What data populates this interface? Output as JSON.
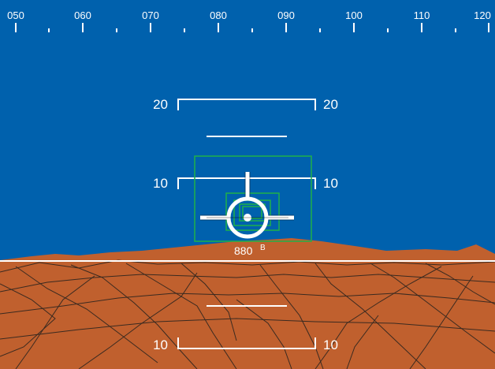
{
  "heading_tape": {
    "labels": [
      "050",
      "060",
      "070",
      "080",
      "090",
      "100",
      "110",
      "120"
    ]
  },
  "pitch_ladder": {
    "up_20": {
      "left": "20",
      "right": "20"
    },
    "up_10": {
      "left": "10",
      "right": "10"
    },
    "down_10": {
      "left": "10",
      "right": "10"
    }
  },
  "target_marker": {
    "altitude_value": "880",
    "altitude_suffix": "B"
  },
  "colors": {
    "sky": "#0061ad",
    "terrain": "#c0602e",
    "terrain_lines": "#3a2a20",
    "symbology": "#ffffff",
    "pathway_boxes": "#1fb14a",
    "horizon": "#ffffff"
  },
  "icons": {
    "flight_path_marker": "aircraft-symbol-icon"
  }
}
